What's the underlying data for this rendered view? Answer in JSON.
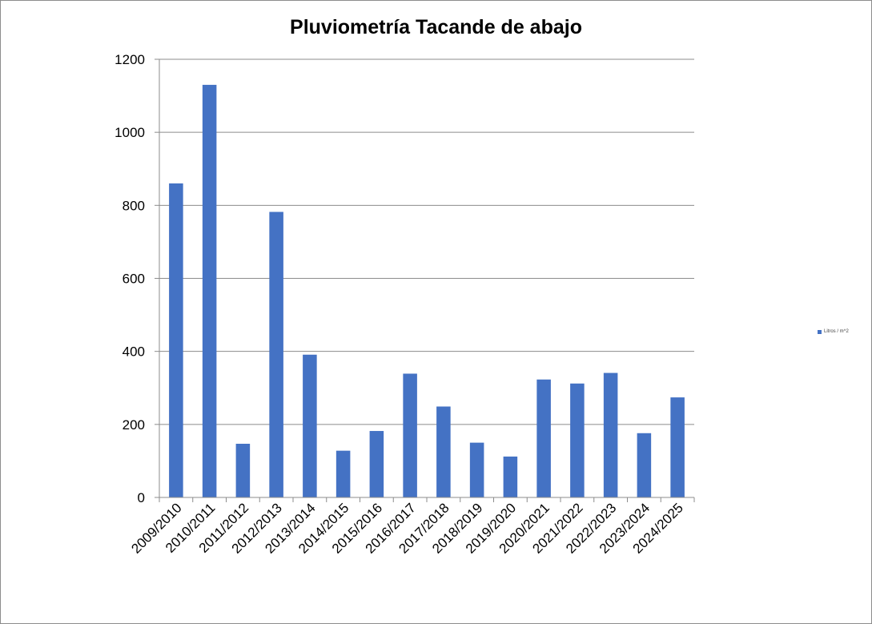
{
  "chart_data": {
    "type": "bar",
    "title": "Pluviometría Tacande de abajo",
    "categories": [
      "2009/2010",
      "2010/2011",
      "2011/2012",
      "2012/2013",
      "2013/2014",
      "2014/2015",
      "2015/2016",
      "2016/2017",
      "2017/2018",
      "2018/2019",
      "2019/2020",
      "2020/2021",
      "2021/2022",
      "2022/2023",
      "2023/2024",
      "2024/2025"
    ],
    "series": [
      {
        "name": "Litros / m^2",
        "color": "#4472c4",
        "values": [
          860,
          1130,
          147,
          782,
          391,
          128,
          182,
          339,
          249,
          150,
          112,
          323,
          312,
          341,
          176,
          274
        ]
      }
    ],
    "yticks": [
      "0",
      "200",
      "400",
      "600",
      "800",
      "1000",
      "1200"
    ],
    "ylim": [
      0,
      1200
    ],
    "xlabel": "",
    "ylabel": "",
    "grid": true,
    "legend_position": "right"
  }
}
